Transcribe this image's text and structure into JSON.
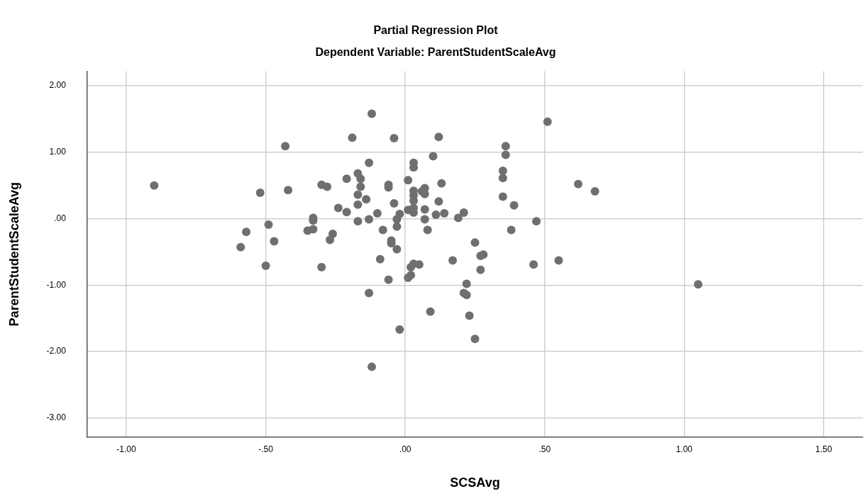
{
  "chart_data": {
    "type": "scatter",
    "title": "Partial Regression Plot",
    "subtitle": "Dependent Variable: ParentStudentScaleAvg",
    "xlabel": "SCSAvg",
    "ylabel": "ParentStudentScaleAvg",
    "x": [
      -0.9,
      -0.57,
      -0.59,
      -0.12,
      -0.19,
      -0.04,
      -0.43,
      -0.13,
      -0.17,
      -0.16,
      -0.21,
      -0.3,
      -0.28,
      -0.16,
      -0.06,
      -0.06,
      -0.52,
      -0.42,
      -0.17,
      -0.14,
      -0.04,
      -0.17,
      -0.24,
      -0.21,
      -0.1,
      -0.33,
      -0.33,
      -0.17,
      -0.13,
      -0.49,
      -0.35,
      -0.33,
      -0.26,
      -0.27,
      -0.08,
      -0.47,
      -0.05,
      -0.05,
      -0.03,
      -0.09,
      -0.5,
      -0.3,
      -0.06,
      -0.13,
      -0.02,
      -0.12,
      0.12,
      0.36,
      0.36,
      0.1,
      0.03,
      0.03,
      0.35,
      0.35,
      0.01,
      0.13,
      0.03,
      0.07,
      0.06,
      0.07,
      0.03,
      0.03,
      0.12,
      0.35,
      0.39,
      0.03,
      0.07,
      0.01,
      0.03,
      -0.02,
      0.14,
      0.11,
      0.21,
      0.19,
      0.07,
      -0.03,
      -0.03,
      0.47,
      0.08,
      0.38,
      0.25,
      0.28,
      0.27,
      0.17,
      0.46,
      0.05,
      0.03,
      0.02,
      0.27,
      0.02,
      0.01,
      0.22,
      0.21,
      0.22,
      0.09,
      0.23,
      0.25,
      0.51,
      0.62,
      0.68,
      0.55,
      1.05
    ],
    "series": [
      {
        "color": "#6f6f6f",
        "values": [
          0.5,
          -0.2,
          -0.43,
          1.58,
          1.22,
          1.21,
          1.09,
          0.84,
          0.68,
          0.6,
          0.6,
          0.51,
          0.48,
          0.48,
          0.51,
          0.47,
          0.39,
          0.43,
          0.36,
          0.29,
          0.23,
          0.21,
          0.16,
          0.1,
          0.08,
          0.01,
          -0.03,
          -0.04,
          -0.01,
          -0.09,
          -0.18,
          -0.16,
          -0.23,
          -0.32,
          -0.17,
          -0.34,
          -0.33,
          -0.37,
          -0.46,
          -0.61,
          -0.71,
          -0.73,
          -0.92,
          -1.12,
          -1.67,
          -2.23,
          1.23,
          1.09,
          0.96,
          0.94,
          0.84,
          0.77,
          0.72,
          0.61,
          0.58,
          0.53,
          0.42,
          0.46,
          0.41,
          0.37,
          0.35,
          0.27,
          0.26,
          0.33,
          0.2,
          0.16,
          0.14,
          0.13,
          0.09,
          0.07,
          0.08,
          0.06,
          0.09,
          0.01,
          -0.01,
          -0.01,
          -0.12,
          -0.04,
          -0.17,
          -0.17,
          -0.36,
          -0.54,
          -0.56,
          -0.63,
          -0.69,
          -0.69,
          -0.68,
          -0.73,
          -0.77,
          -0.85,
          -0.89,
          -0.98,
          -1.12,
          -1.15,
          -1.4,
          -1.46,
          -1.81,
          1.46,
          0.52,
          0.41,
          -0.63,
          -0.99
        ]
      }
    ],
    "xlim": [
      -1.14,
      1.64
    ],
    "ylim": [
      -3.29,
      2.22
    ],
    "xticks": [
      {
        "value": -1,
        "label": "-1.00"
      },
      {
        "value": -0.5,
        "label": "-.50"
      },
      {
        "value": 0,
        "label": ".00"
      },
      {
        "value": 0.5,
        "label": ".50"
      },
      {
        "value": 1,
        "label": "1.00"
      },
      {
        "value": 1.5,
        "label": "1.50"
      }
    ],
    "yticks": [
      {
        "value": -3,
        "label": "-3.00"
      },
      {
        "value": -2,
        "label": "-2.00"
      },
      {
        "value": -1,
        "label": "-1.00"
      },
      {
        "value": 0,
        "label": ".00"
      },
      {
        "value": 1,
        "label": "1.00"
      },
      {
        "value": 2,
        "label": "2.00"
      }
    ],
    "grid": true,
    "legend": false,
    "marker": "circle"
  }
}
